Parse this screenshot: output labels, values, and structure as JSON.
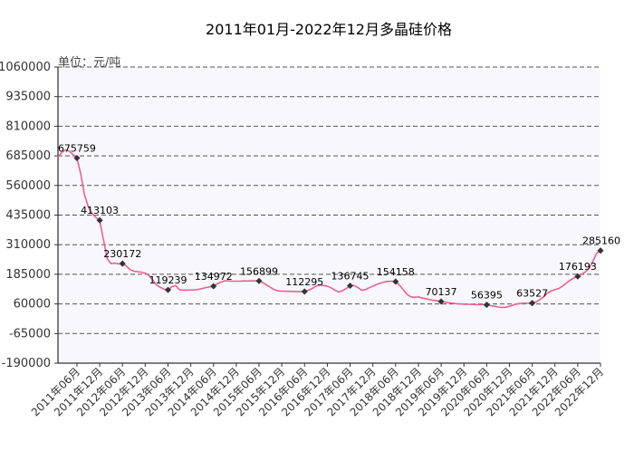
{
  "chart_data": {
    "type": "line",
    "title": "2011年01月-2022年12月多晶硅价格",
    "unit_label": "单位：元/吨",
    "ylim": [
      -190000,
      1060000
    ],
    "y_ticks": [
      1060000,
      935000,
      810000,
      685000,
      560000,
      435000,
      310000,
      185000,
      60000,
      -65000,
      -190000
    ],
    "y_tick_labels": [
      "1060000",
      "935000",
      "810000",
      "685000",
      "560000",
      "435000",
      "310000",
      "185000",
      "60000",
      "-65000",
      "-190000"
    ],
    "x_tick_labels": [
      "2011年06月",
      "2011年12月",
      "2012年06月",
      "2012年12月",
      "2013年06月",
      "2013年12月",
      "2014年06月",
      "2014年12月",
      "2015年06月",
      "2015年12月",
      "2016年06月",
      "2016年12月",
      "2017年06月",
      "2017年12月",
      "2018年06月",
      "2018年12月",
      "2019年06月",
      "2019年12月",
      "2020年06月",
      "2020年12月",
      "2021年06月",
      "2021年12月",
      "2022年06月",
      "2022年12月"
    ],
    "series": [
      {
        "values": [
          [
            "2011-01",
            680000
          ],
          [
            "2011-02",
            700000
          ],
          [
            "2011-03",
            710000
          ],
          [
            "2011-04",
            705000
          ],
          [
            "2011-05",
            690000
          ],
          [
            "2011-06",
            675759
          ],
          [
            "2011-07",
            610000
          ],
          [
            "2011-08",
            520000
          ],
          [
            "2011-09",
            470000
          ],
          [
            "2011-10",
            440000
          ],
          [
            "2011-11",
            425000
          ],
          [
            "2011-12",
            413103
          ],
          [
            "2012-01",
            330000
          ],
          [
            "2012-02",
            250000
          ],
          [
            "2012-03",
            230000
          ],
          [
            "2012-04",
            232000
          ],
          [
            "2012-05",
            229000
          ],
          [
            "2012-06",
            230172
          ],
          [
            "2012-07",
            220000
          ],
          [
            "2012-08",
            205000
          ],
          [
            "2012-09",
            198000
          ],
          [
            "2012-10",
            196000
          ],
          [
            "2012-11",
            194000
          ],
          [
            "2012-12",
            190000
          ],
          [
            "2013-01",
            180000
          ],
          [
            "2013-02",
            160000
          ],
          [
            "2013-03",
            140000
          ],
          [
            "2013-04",
            130000
          ],
          [
            "2013-05",
            122000
          ],
          [
            "2013-06",
            119239
          ],
          [
            "2013-07",
            132000
          ],
          [
            "2013-08",
            138000
          ],
          [
            "2013-09",
            120000
          ],
          [
            "2013-10",
            118000
          ],
          [
            "2013-11",
            118500
          ],
          [
            "2013-12",
            119000
          ],
          [
            "2014-01",
            119500
          ],
          [
            "2014-02",
            121000
          ],
          [
            "2014-03",
            125000
          ],
          [
            "2014-04",
            129000
          ],
          [
            "2014-05",
            132000
          ],
          [
            "2014-06",
            134972
          ],
          [
            "2014-07",
            145000
          ],
          [
            "2014-08",
            152000
          ],
          [
            "2014-09",
            158000
          ],
          [
            "2014-10",
            157000
          ],
          [
            "2014-11",
            156000
          ],
          [
            "2014-12",
            156000
          ],
          [
            "2015-01",
            156500
          ],
          [
            "2015-02",
            157000
          ],
          [
            "2015-03",
            156800
          ],
          [
            "2015-04",
            157500
          ],
          [
            "2015-05",
            158000
          ],
          [
            "2015-06",
            156899
          ],
          [
            "2015-07",
            150000
          ],
          [
            "2015-08",
            140000
          ],
          [
            "2015-09",
            130000
          ],
          [
            "2015-10",
            120000
          ],
          [
            "2015-11",
            115000
          ],
          [
            "2015-12",
            114000
          ],
          [
            "2016-01",
            113500
          ],
          [
            "2016-02",
            113000
          ],
          [
            "2016-03",
            112800
          ],
          [
            "2016-04",
            112500
          ],
          [
            "2016-05",
            112400
          ],
          [
            "2016-06",
            112295
          ],
          [
            "2016-07",
            118000
          ],
          [
            "2016-08",
            125000
          ],
          [
            "2016-09",
            135000
          ],
          [
            "2016-10",
            140000
          ],
          [
            "2016-11",
            138000
          ],
          [
            "2016-12",
            135000
          ],
          [
            "2017-01",
            128000
          ],
          [
            "2017-02",
            118000
          ],
          [
            "2017-03",
            110000
          ],
          [
            "2017-04",
            116000
          ],
          [
            "2017-05",
            125000
          ],
          [
            "2017-06",
            136745
          ],
          [
            "2017-07",
            138000
          ],
          [
            "2017-08",
            130000
          ],
          [
            "2017-09",
            118000
          ],
          [
            "2017-10",
            120000
          ],
          [
            "2017-11",
            128000
          ],
          [
            "2017-12",
            135000
          ],
          [
            "2018-01",
            142000
          ],
          [
            "2018-02",
            148000
          ],
          [
            "2018-03",
            152000
          ],
          [
            "2018-04",
            155000
          ],
          [
            "2018-05",
            156000
          ],
          [
            "2018-06",
            154158
          ],
          [
            "2018-07",
            140000
          ],
          [
            "2018-08",
            120000
          ],
          [
            "2018-09",
            100000
          ],
          [
            "2018-10",
            90000
          ],
          [
            "2018-11",
            88000
          ],
          [
            "2018-12",
            90000
          ],
          [
            "2019-01",
            85000
          ],
          [
            "2019-02",
            82000
          ],
          [
            "2019-03",
            78000
          ],
          [
            "2019-04",
            75000
          ],
          [
            "2019-05",
            73000
          ],
          [
            "2019-06",
            70137
          ],
          [
            "2019-07",
            68000
          ],
          [
            "2019-08",
            65000
          ],
          [
            "2019-09",
            63000
          ],
          [
            "2019-10",
            61000
          ],
          [
            "2019-11",
            60000
          ],
          [
            "2019-12",
            59000
          ],
          [
            "2020-01",
            58500
          ],
          [
            "2020-02",
            58000
          ],
          [
            "2020-03",
            57500
          ],
          [
            "2020-04",
            57000
          ],
          [
            "2020-05",
            56700
          ],
          [
            "2020-06",
            56395
          ],
          [
            "2020-07",
            53000
          ],
          [
            "2020-08",
            50000
          ],
          [
            "2020-09",
            47000
          ],
          [
            "2020-10",
            45000
          ],
          [
            "2020-11",
            46000
          ],
          [
            "2020-12",
            50000
          ],
          [
            "2021-01",
            55000
          ],
          [
            "2021-02",
            60000
          ],
          [
            "2021-03",
            62000
          ],
          [
            "2021-04",
            63000
          ],
          [
            "2021-05",
            63300
          ],
          [
            "2021-06",
            63527
          ],
          [
            "2021-07",
            68000
          ],
          [
            "2021-08",
            78000
          ],
          [
            "2021-09",
            90000
          ],
          [
            "2021-10",
            105000
          ],
          [
            "2021-11",
            115000
          ],
          [
            "2021-12",
            120000
          ],
          [
            "2022-01",
            125000
          ],
          [
            "2022-02",
            135000
          ],
          [
            "2022-03",
            148000
          ],
          [
            "2022-04",
            160000
          ],
          [
            "2022-05",
            170000
          ],
          [
            "2022-06",
            176193
          ],
          [
            "2022-07",
            185000
          ],
          [
            "2022-08",
            195000
          ],
          [
            "2022-09",
            210000
          ],
          [
            "2022-10",
            240000
          ],
          [
            "2022-11",
            275000
          ],
          [
            "2022-12",
            285160
          ]
        ],
        "color": "#f0608c"
      }
    ],
    "labeled_points": [
      {
        "x": "2011-06",
        "label": "675759"
      },
      {
        "x": "2011-12",
        "label": "413103"
      },
      {
        "x": "2012-06",
        "label": "230172"
      },
      {
        "x": "2013-06",
        "label": "119239"
      },
      {
        "x": "2014-06",
        "label": "134972"
      },
      {
        "x": "2015-06",
        "label": "156899"
      },
      {
        "x": "2016-06",
        "label": "112295"
      },
      {
        "x": "2017-06",
        "label": "136745"
      },
      {
        "x": "2018-06",
        "label": "154158"
      },
      {
        "x": "2019-06",
        "label": "70137"
      },
      {
        "x": "2020-06",
        "label": "56395"
      },
      {
        "x": "2021-06",
        "label": "63527"
      },
      {
        "x": "2022-06",
        "label": "176193"
      },
      {
        "x": "2022-12",
        "label": "285160"
      }
    ],
    "grid": true,
    "colors": {
      "line": "#f0608c",
      "marker": "#333333",
      "grid": "#555555",
      "plot_bg": "#f7f7fd"
    }
  }
}
